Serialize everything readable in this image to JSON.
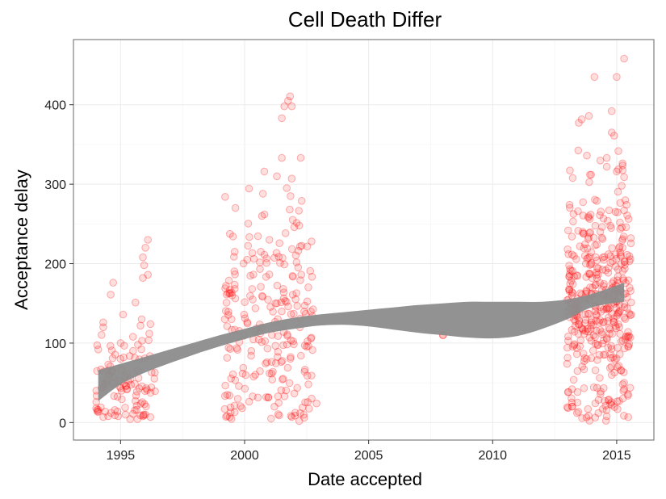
{
  "chart_data": {
    "type": "scatter",
    "title": "Cell Death Differ",
    "xlabel": "Date accepted",
    "ylabel": "Acceptance delay",
    "xlim": [
      1993.1,
      2016.5
    ],
    "ylim": [
      -22,
      482
    ],
    "x_ticks": [
      1995,
      2000,
      2005,
      2010,
      2015
    ],
    "y_ticks": [
      0,
      100,
      200,
      300,
      400
    ],
    "grid": true,
    "colors": {
      "points": "#ff0000",
      "band": "#8c8c8c"
    },
    "smooth_band": {
      "x": [
        1994.1,
        1995,
        1996,
        1997,
        1998,
        1999,
        2000,
        2001,
        2002,
        2003,
        2004,
        2005,
        2006,
        2007,
        2008,
        2009,
        2010,
        2011,
        2012,
        2013,
        2014,
        2015.3
      ],
      "lower": [
        27,
        48,
        63,
        75,
        86,
        96,
        105,
        113,
        118,
        122,
        123,
        121,
        117,
        113,
        110,
        107,
        106,
        109,
        118,
        130,
        145,
        152
      ],
      "upper": [
        66,
        74,
        83,
        92,
        101,
        110,
        118,
        126,
        132,
        136,
        139,
        142,
        145,
        148,
        150,
        152,
        152,
        152,
        152,
        155,
        162,
        176
      ]
    },
    "clusters": [
      {
        "x_range": [
          1994.0,
          1996.4
        ],
        "n": 95,
        "y_mean": 55,
        "y_sd": 38
      },
      {
        "x_range": [
          1999.2,
          2002.8
        ],
        "n": 230,
        "y_mean": 125,
        "y_sd": 75
      },
      {
        "x_range": [
          2007.9,
          2008.0
        ],
        "n": 1,
        "y_mean": 110,
        "y_sd": 0
      },
      {
        "x_range": [
          2013.0,
          2015.6
        ],
        "n": 420,
        "y_mean": 150,
        "y_sd": 72
      }
    ],
    "points": [
      {
        "x": 1996.1,
        "y": 230
      },
      {
        "x": 1996.0,
        "y": 220
      },
      {
        "x": 1995.9,
        "y": 208
      },
      {
        "x": 1995.95,
        "y": 198
      },
      {
        "x": 1996.1,
        "y": 186
      },
      {
        "x": 1995.9,
        "y": 182
      },
      {
        "x": 1994.7,
        "y": 176
      },
      {
        "x": 1994.6,
        "y": 161
      },
      {
        "x": 1995.6,
        "y": 151
      },
      {
        "x": 1995.1,
        "y": 136
      },
      {
        "x": 1994.3,
        "y": 126
      },
      {
        "x": 1994.3,
        "y": 120
      },
      {
        "x": 1996.2,
        "y": 124
      },
      {
        "x": 1995.85,
        "y": 130
      },
      {
        "x": 1995.8,
        "y": 122
      },
      {
        "x": 1994.1,
        "y": 92
      },
      {
        "x": 1994.05,
        "y": 65
      },
      {
        "x": 1994.1,
        "y": 16
      },
      {
        "x": 1994.3,
        "y": 7
      },
      {
        "x": 1994.5,
        "y": 8
      },
      {
        "x": 1994.9,
        "y": 8
      },
      {
        "x": 1995.2,
        "y": 10
      },
      {
        "x": 1995.5,
        "y": 11
      },
      {
        "x": 1995.8,
        "y": 9
      },
      {
        "x": 1996.0,
        "y": 10
      },
      {
        "x": 1996.2,
        "y": 7
      },
      {
        "x": 1995.0,
        "y": 100
      },
      {
        "x": 1995.5,
        "y": 108
      },
      {
        "x": 1995.7,
        "y": 98
      },
      {
        "x": 1999.6,
        "y": 215
      },
      {
        "x": 1999.4,
        "y": 167
      },
      {
        "x": 1999.5,
        "y": 160
      },
      {
        "x": 1999.2,
        "y": 130
      },
      {
        "x": 1999.3,
        "y": 35
      },
      {
        "x": 1999.2,
        "y": 17
      },
      {
        "x": 1999.4,
        "y": 7
      },
      {
        "x": 1999.6,
        "y": 13
      },
      {
        "x": 1999.9,
        "y": 18
      },
      {
        "x": 2000.8,
        "y": 262
      },
      {
        "x": 2000.7,
        "y": 260
      },
      {
        "x": 2001.3,
        "y": 310
      },
      {
        "x": 2001.5,
        "y": 333
      },
      {
        "x": 2001.5,
        "y": 383
      },
      {
        "x": 2001.6,
        "y": 398
      },
      {
        "x": 2001.75,
        "y": 405
      },
      {
        "x": 2001.9,
        "y": 398
      },
      {
        "x": 2001.7,
        "y": 295
      },
      {
        "x": 2001.9,
        "y": 307
      },
      {
        "x": 2001.85,
        "y": 285
      },
      {
        "x": 2002.3,
        "y": 279
      },
      {
        "x": 2002.2,
        "y": 248
      },
      {
        "x": 2002.0,
        "y": 246
      },
      {
        "x": 2001.0,
        "y": 230
      },
      {
        "x": 2002.7,
        "y": 228
      },
      {
        "x": 2001.9,
        "y": 7
      },
      {
        "x": 2002.2,
        "y": 2
      },
      {
        "x": 2002.4,
        "y": 6
      },
      {
        "x": 2002.9,
        "y": 24
      },
      {
        "x": 2001.2,
        "y": 20
      },
      {
        "x": 2008.0,
        "y": 110
      },
      {
        "x": 2015.3,
        "y": 458
      },
      {
        "x": 2014.1,
        "y": 435
      },
      {
        "x": 2015.0,
        "y": 435
      },
      {
        "x": 2014.8,
        "y": 392
      },
      {
        "x": 2014.8,
        "y": 365
      },
      {
        "x": 2014.9,
        "y": 361
      },
      {
        "x": 2013.8,
        "y": 336
      },
      {
        "x": 2014.6,
        "y": 333
      },
      {
        "x": 2014.6,
        "y": 322
      },
      {
        "x": 2015.0,
        "y": 316
      },
      {
        "x": 2015.3,
        "y": 309
      },
      {
        "x": 2015.2,
        "y": 298
      },
      {
        "x": 2013.1,
        "y": 274
      },
      {
        "x": 2015.4,
        "y": 274
      },
      {
        "x": 2015.3,
        "y": 267
      },
      {
        "x": 2014.2,
        "y": 279
      },
      {
        "x": 2013.2,
        "y": 42
      },
      {
        "x": 2013.2,
        "y": 20
      },
      {
        "x": 2013.4,
        "y": 12
      },
      {
        "x": 2014.6,
        "y": 8
      },
      {
        "x": 2014.8,
        "y": 22
      },
      {
        "x": 2015.1,
        "y": 27
      },
      {
        "x": 2015.3,
        "y": 42
      },
      {
        "x": 2015.3,
        "y": 50
      }
    ]
  }
}
